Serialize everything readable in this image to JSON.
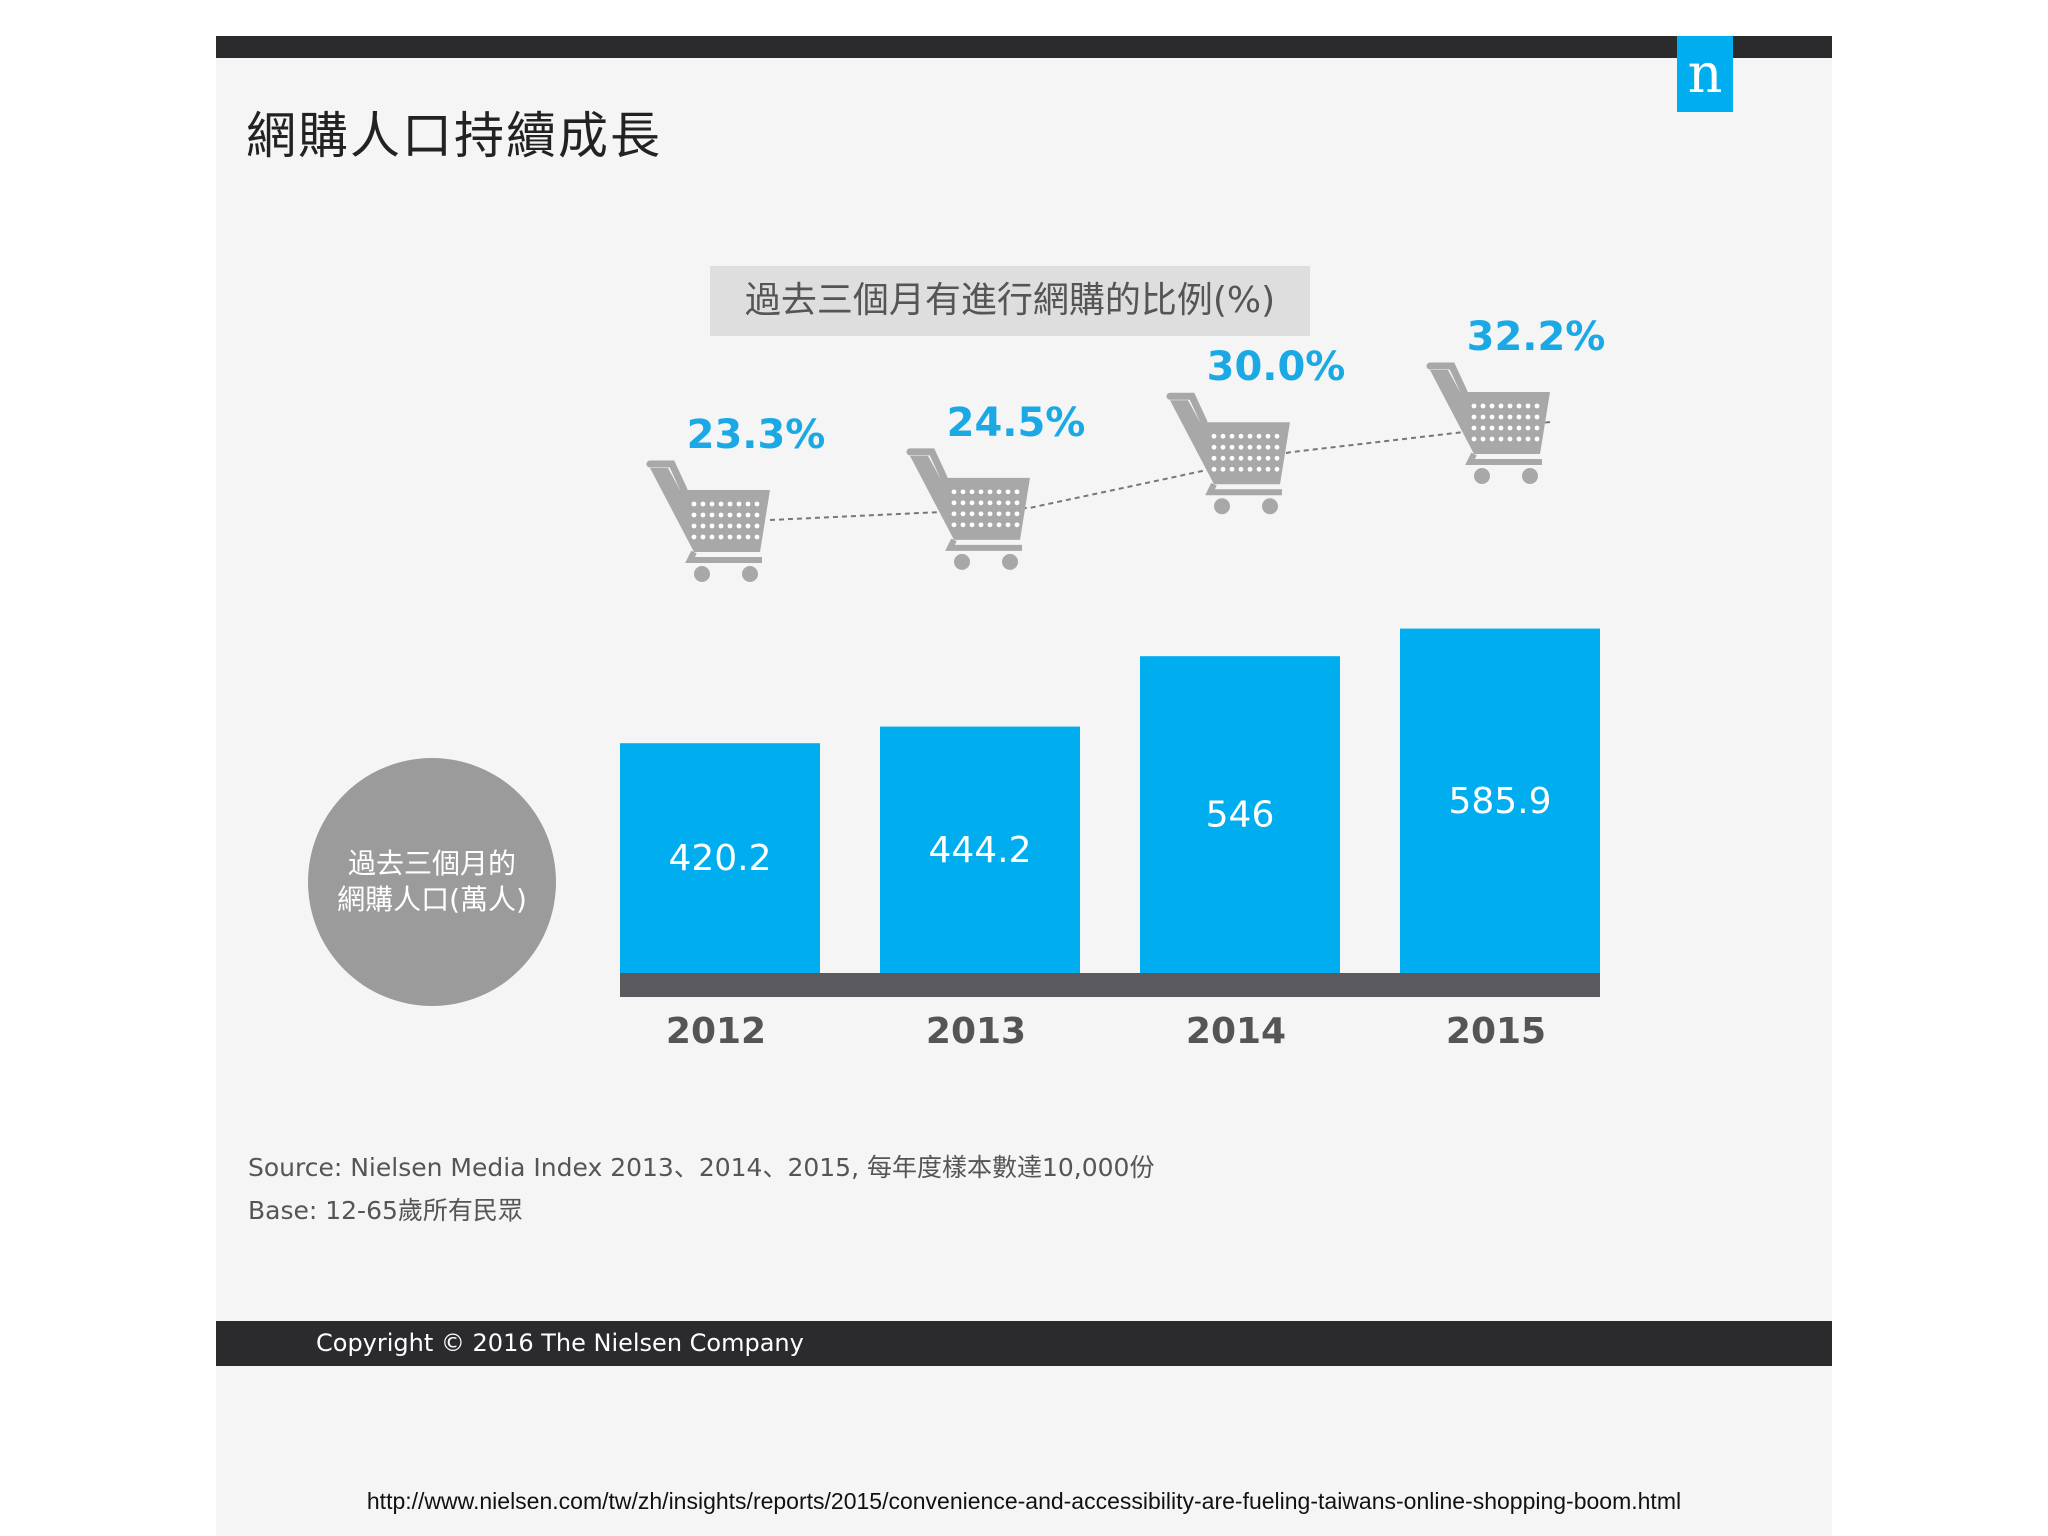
{
  "slide": {
    "title": "網購人口持續成長",
    "logo_letter": "n",
    "copyright": "Copyright © 2016 The Nielsen Company",
    "source_line1": "Source: Nielsen Media Index 2013、2014、2015, 每年度樣本數達10,000份",
    "source_line2": "Base: 12-65歲所有民眾"
  },
  "footer_url": "http://www.nielsen.com/tw/zh/insights/reports/2015/convenience-and-accessibility-are-fueling-taiwans-online-shopping-boom.html",
  "colors": {
    "accent": "#00aeef",
    "bar": "#00aeef",
    "pct": "#1ba9e6",
    "dark": "#2b2b2e",
    "grey": "#9b9b9b"
  },
  "chart_data": {
    "type": "bar",
    "title": "過去三個月有進行網購的比例(%)",
    "categories": [
      "2012",
      "2013",
      "2014",
      "2015"
    ],
    "series": [
      {
        "name": "過去三個月的網購人口(萬人)",
        "values": [
          420.2,
          444.2,
          546,
          585.9
        ],
        "labels": [
          "420.2",
          "444.2",
          "546",
          "585.9"
        ]
      },
      {
        "name": "過去三個月有進行網購的比例(%)",
        "values": [
          23.3,
          24.5,
          30.0,
          32.2
        ],
        "labels": [
          "23.3%",
          "24.5%",
          "30.0%",
          "32.2%"
        ]
      }
    ],
    "circle_label_line1": "過去三個月的",
    "circle_label_line2": "網購人口(萬人)",
    "legend": "none",
    "grid": false,
    "icon": "shopping-cart-icon"
  }
}
